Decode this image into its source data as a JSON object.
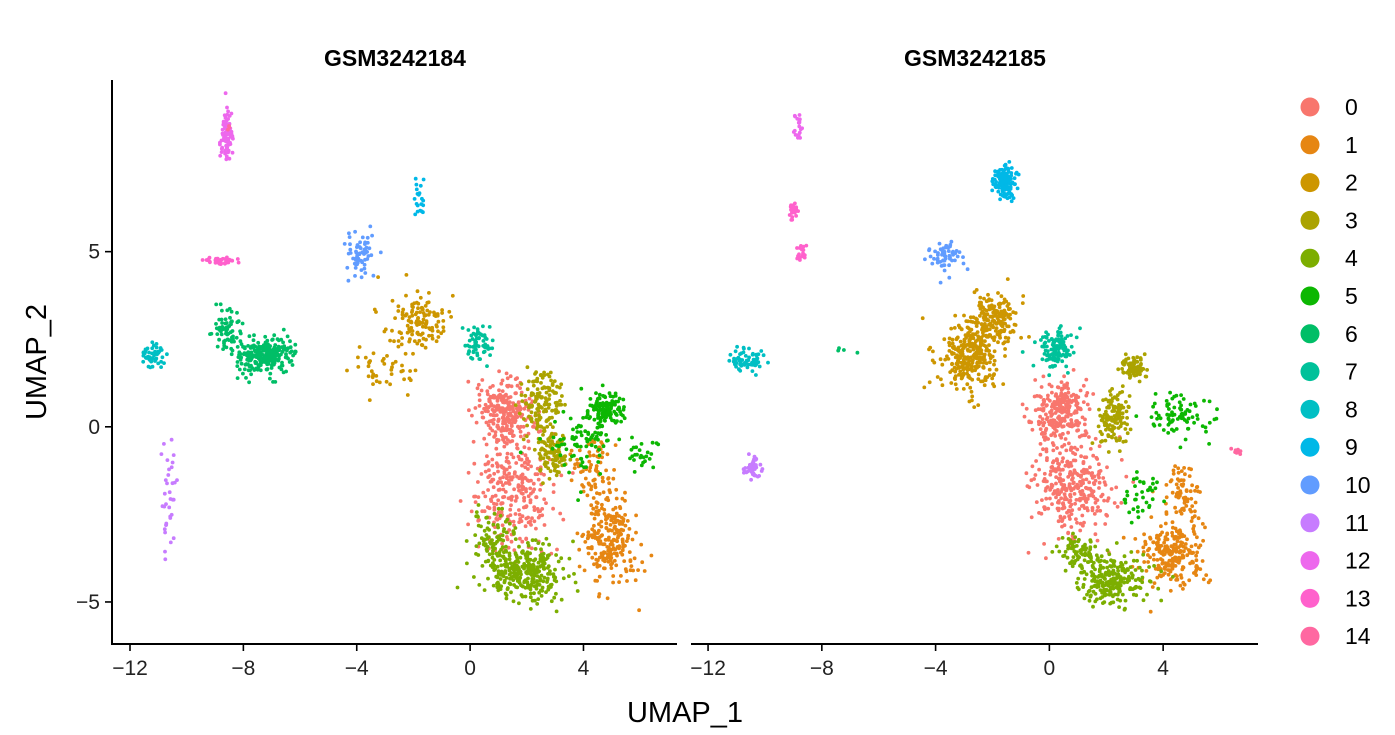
{
  "chart_data": {
    "type": "scatter",
    "xlabel": "UMAP_1",
    "ylabel": "UMAP_2",
    "xlim": [
      -12.6,
      7.3
    ],
    "ylim": [
      -6.2,
      9.9
    ],
    "x_ticks": [
      -12,
      -8,
      -4,
      0,
      4
    ],
    "y_ticks": [
      -5,
      0,
      5
    ],
    "legend_position": "right",
    "clusters": [
      {
        "label": "0",
        "color": "#F8766D"
      },
      {
        "label": "1",
        "color": "#E68613"
      },
      {
        "label": "2",
        "color": "#CD9600"
      },
      {
        "label": "3",
        "color": "#ABA300"
      },
      {
        "label": "4",
        "color": "#7CAE00"
      },
      {
        "label": "5",
        "color": "#0CB702"
      },
      {
        "label": "6",
        "color": "#00BE67"
      },
      {
        "label": "7",
        "color": "#00C19A"
      },
      {
        "label": "8",
        "color": "#00BFC4"
      },
      {
        "label": "9",
        "color": "#00B8E7"
      },
      {
        "label": "10",
        "color": "#619CFF"
      },
      {
        "label": "11",
        "color": "#C77CFF"
      },
      {
        "label": "12",
        "color": "#ED68ED"
      },
      {
        "label": "13",
        "color": "#FF61CC"
      },
      {
        "label": "14",
        "color": "#FF68A1"
      }
    ],
    "panels": [
      {
        "title": "GSM3242184",
        "clusters": [
          {
            "cluster": "0",
            "n": 520,
            "regions": [
              {
                "x": 1.5,
                "y": -1.8,
                "sx": 1.3,
                "sy": 1.4,
                "w": 0.55
              },
              {
                "x": 1.2,
                "y": 0.4,
                "sx": 0.8,
                "sy": 0.8,
                "w": 0.45
              }
            ]
          },
          {
            "cluster": "1",
            "n": 300,
            "regions": [
              {
                "x": 4.9,
                "y": -3.2,
                "sx": 0.8,
                "sy": 1.1,
                "w": 0.8
              },
              {
                "x": 4.3,
                "y": -1.2,
                "sx": 0.5,
                "sy": 0.7,
                "w": 0.2
              }
            ]
          },
          {
            "cluster": "2",
            "n": 170,
            "regions": [
              {
                "x": -1.8,
                "y": 3.0,
                "sx": 1.0,
                "sy": 0.7,
                "w": 0.7
              },
              {
                "x": -3.0,
                "y": 1.6,
                "sx": 0.9,
                "sy": 0.6,
                "w": 0.3
              }
            ]
          },
          {
            "cluster": "3",
            "n": 230,
            "regions": [
              {
                "x": 2.5,
                "y": 0.6,
                "sx": 0.6,
                "sy": 0.9,
                "w": 0.6
              },
              {
                "x": 2.9,
                "y": -0.8,
                "sx": 0.5,
                "sy": 0.6,
                "w": 0.4
              }
            ]
          },
          {
            "cluster": "4",
            "n": 390,
            "regions": [
              {
                "x": 2.0,
                "y": -4.2,
                "sx": 1.1,
                "sy": 0.7,
                "w": 0.75
              },
              {
                "x": 0.8,
                "y": -3.2,
                "sx": 0.6,
                "sy": 0.7,
                "w": 0.25
              }
            ]
          },
          {
            "cluster": "5",
            "n": 230,
            "regions": [
              {
                "x": 4.8,
                "y": 0.5,
                "sx": 0.5,
                "sy": 0.4,
                "w": 0.5
              },
              {
                "x": 3.9,
                "y": -0.3,
                "sx": 0.9,
                "sy": 0.9,
                "w": 0.35
              },
              {
                "x": 6.0,
                "y": -0.8,
                "sx": 0.5,
                "sy": 0.4,
                "w": 0.15
              }
            ]
          },
          {
            "cluster": "6",
            "n": 330,
            "regions": [
              {
                "x": -7.2,
                "y": 2.0,
                "sx": 0.8,
                "sy": 0.4,
                "w": 0.8
              },
              {
                "x": -8.6,
                "y": 2.9,
                "sx": 0.4,
                "sy": 0.5,
                "w": 0.2
              }
            ]
          },
          {
            "cluster": "7",
            "n": 60,
            "regions": [
              {
                "x": 0.3,
                "y": 2.4,
                "sx": 0.4,
                "sy": 0.4,
                "w": 1
              }
            ]
          },
          {
            "cluster": "8",
            "n": 55,
            "regions": [
              {
                "x": -11.2,
                "y": 2.0,
                "sx": 0.3,
                "sy": 0.3,
                "w": 1
              }
            ]
          },
          {
            "cluster": "9",
            "n": 20,
            "regions": [
              {
                "x": -1.8,
                "y": 6.5,
                "sx": 0.2,
                "sy": 0.6,
                "w": 1
              }
            ]
          },
          {
            "cluster": "10",
            "n": 60,
            "regions": [
              {
                "x": -3.9,
                "y": 5.0,
                "sx": 0.4,
                "sy": 0.5,
                "w": 1
              }
            ]
          },
          {
            "cluster": "11",
            "n": 35,
            "regions": [
              {
                "x": -10.7,
                "y": -2.0,
                "sx": 0.25,
                "sy": 1.2,
                "w": 1
              }
            ]
          },
          {
            "cluster": "12",
            "n": 80,
            "regions": [
              {
                "x": -8.6,
                "y": 8.4,
                "sx": 0.2,
                "sy": 0.6,
                "w": 1
              }
            ]
          },
          {
            "cluster": "13",
            "n": 45,
            "regions": [
              {
                "x": -8.8,
                "y": 4.75,
                "sx": 0.45,
                "sy": 0.12,
                "w": 1
              }
            ]
          },
          {
            "cluster": "14",
            "n": 3,
            "regions": [
              {
                "x": -8.5,
                "y": 8.6,
                "sx": 0.1,
                "sy": 0.1,
                "w": 1
              }
            ]
          }
        ]
      },
      {
        "title": "GSM3242185",
        "clusters": [
          {
            "cluster": "0",
            "n": 560,
            "regions": [
              {
                "x": 0.8,
                "y": -1.7,
                "sx": 1.1,
                "sy": 1.3,
                "w": 0.6
              },
              {
                "x": 0.4,
                "y": 0.5,
                "sx": 0.8,
                "sy": 0.7,
                "w": 0.4
              }
            ]
          },
          {
            "cluster": "1",
            "n": 300,
            "regions": [
              {
                "x": 4.3,
                "y": -3.6,
                "sx": 0.9,
                "sy": 0.8,
                "w": 0.8
              },
              {
                "x": 4.7,
                "y": -1.8,
                "sx": 0.5,
                "sy": 0.7,
                "w": 0.2
              }
            ]
          },
          {
            "cluster": "2",
            "n": 460,
            "regions": [
              {
                "x": -2.8,
                "y": 2.0,
                "sx": 0.9,
                "sy": 0.8,
                "w": 0.6
              },
              {
                "x": -1.9,
                "y": 3.1,
                "sx": 0.7,
                "sy": 0.6,
                "w": 0.4
              }
            ]
          },
          {
            "cluster": "3",
            "n": 200,
            "regions": [
              {
                "x": 2.3,
                "y": 0.2,
                "sx": 0.5,
                "sy": 0.6,
                "w": 0.7
              },
              {
                "x": 3.0,
                "y": 1.7,
                "sx": 0.4,
                "sy": 0.3,
                "w": 0.3
              }
            ]
          },
          {
            "cluster": "4",
            "n": 330,
            "regions": [
              {
                "x": 2.2,
                "y": -4.4,
                "sx": 1.0,
                "sy": 0.6,
                "w": 0.8
              },
              {
                "x": 1.0,
                "y": -3.6,
                "sx": 0.6,
                "sy": 0.4,
                "w": 0.2
              }
            ]
          },
          {
            "cluster": "5",
            "n": 120,
            "regions": [
              {
                "x": 4.5,
                "y": 0.3,
                "sx": 0.9,
                "sy": 0.6,
                "w": 0.6
              },
              {
                "x": 3.2,
                "y": -2.0,
                "sx": 0.7,
                "sy": 0.6,
                "w": 0.4
              }
            ]
          },
          {
            "cluster": "6",
            "n": 4,
            "regions": [
              {
                "x": -7.4,
                "y": 2.2,
                "sx": 1.2,
                "sy": 0.1,
                "w": 1
              }
            ]
          },
          {
            "cluster": "7",
            "n": 120,
            "regions": [
              {
                "x": 0.2,
                "y": 2.2,
                "sx": 0.5,
                "sy": 0.5,
                "w": 1
              }
            ]
          },
          {
            "cluster": "8",
            "n": 70,
            "regions": [
              {
                "x": -10.6,
                "y": 1.9,
                "sx": 0.5,
                "sy": 0.25,
                "w": 1
              }
            ]
          },
          {
            "cluster": "9",
            "n": 160,
            "regions": [
              {
                "x": -1.6,
                "y": 7.0,
                "sx": 0.3,
                "sy": 0.35,
                "w": 1
              }
            ]
          },
          {
            "cluster": "10",
            "n": 60,
            "regions": [
              {
                "x": -3.6,
                "y": 4.8,
                "sx": 0.5,
                "sy": 0.4,
                "w": 1
              }
            ]
          },
          {
            "cluster": "11",
            "n": 45,
            "regions": [
              {
                "x": -10.4,
                "y": -1.2,
                "sx": 0.25,
                "sy": 0.3,
                "w": 1
              }
            ]
          },
          {
            "cluster": "12",
            "n": 18,
            "regions": [
              {
                "x": -8.8,
                "y": 8.6,
                "sx": 0.15,
                "sy": 0.3,
                "w": 1
              }
            ]
          },
          {
            "cluster": "13",
            "n": 40,
            "regions": [
              {
                "x": -9.0,
                "y": 6.2,
                "sx": 0.12,
                "sy": 0.2,
                "w": 0.65
              },
              {
                "x": -8.7,
                "y": 5.0,
                "sx": 0.2,
                "sy": 0.2,
                "w": 0.35
              }
            ]
          },
          {
            "cluster": "14",
            "n": 12,
            "regions": [
              {
                "x": 6.6,
                "y": -0.7,
                "sx": 0.15,
                "sy": 0.08,
                "w": 1
              }
            ]
          }
        ]
      }
    ]
  }
}
